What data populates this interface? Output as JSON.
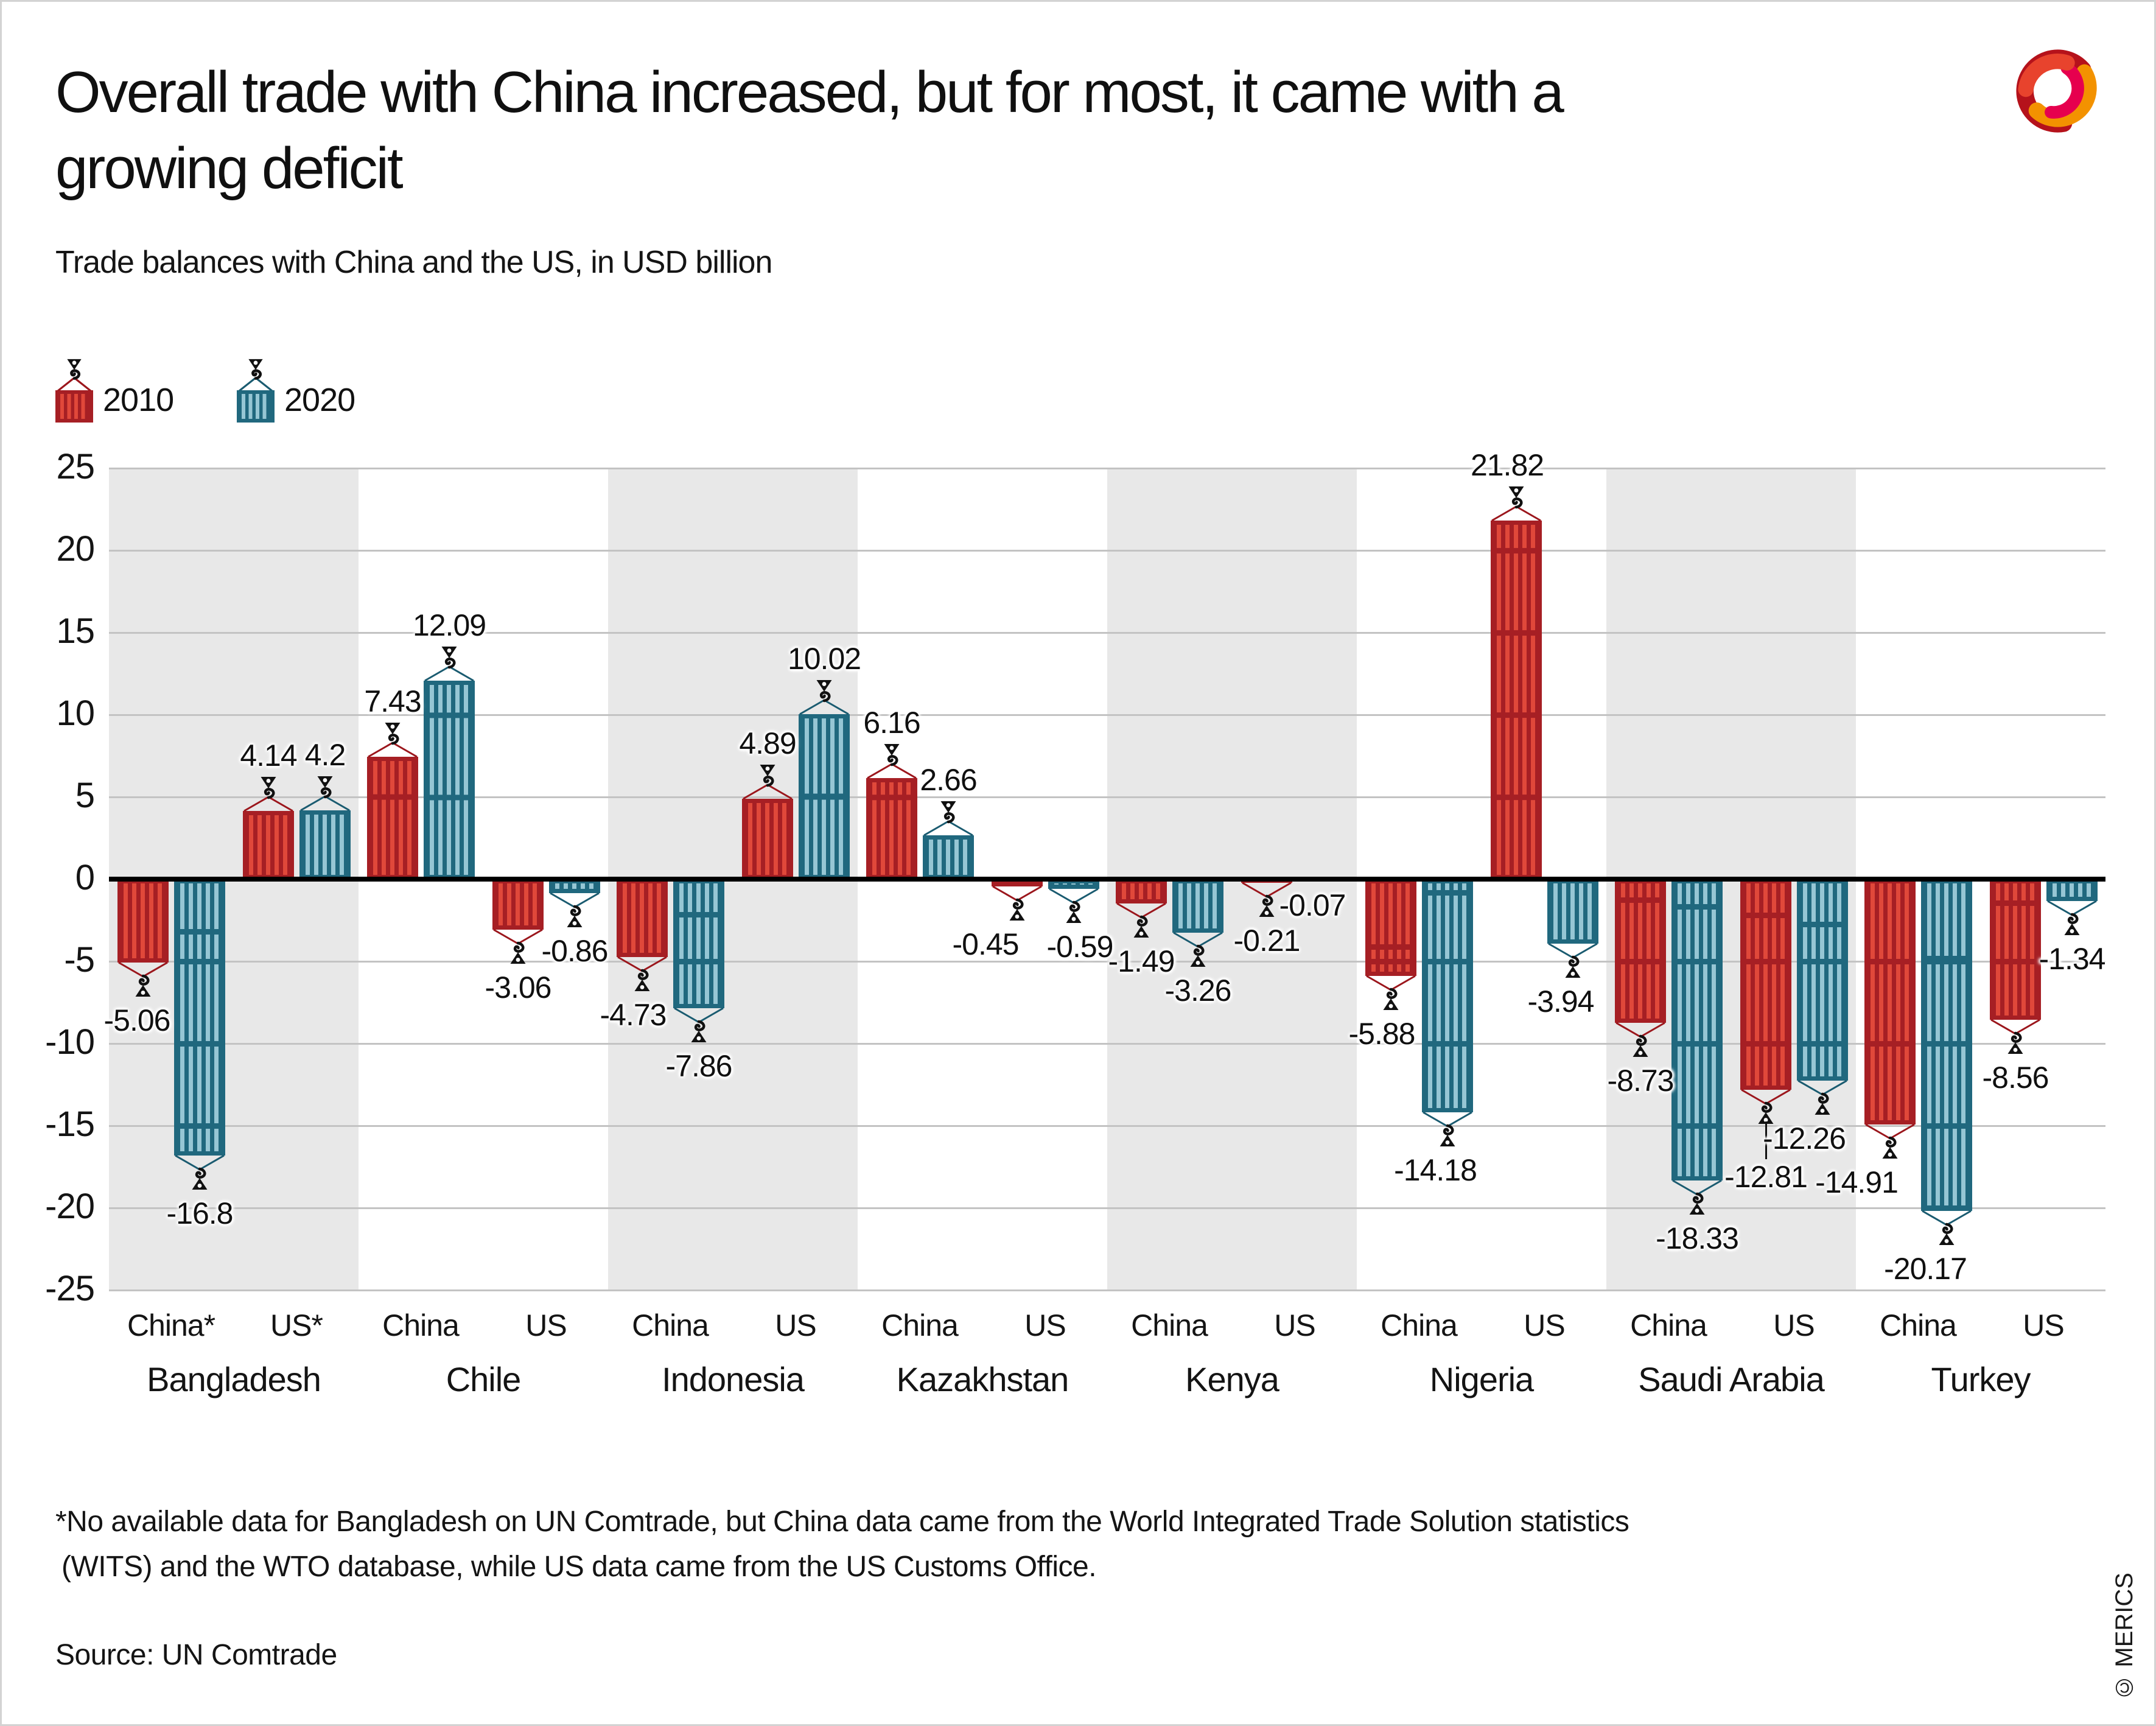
{
  "header": {
    "title_line1": "Overall trade with China increased, but for most, it came with a",
    "title_line2": "growing deficit",
    "subtitle": "Trade balances with China and the US, in USD billion"
  },
  "footnote": {
    "line1": "*No available data for Bangladesh on UN Comtrade, but China data came from the World Integrated Trade Solution statistics",
    "line2": "(WITS) and the WTO database, while US data came from the US Customs Office."
  },
  "source": "Source: UN Comtrade",
  "copyright": "© MERICS",
  "colors": {
    "red_base": "#A61F24",
    "red_stripe": "#E0483A",
    "red_cable": "#9B161C",
    "teal_base": "#20687E",
    "teal_stripe": "#96C6D4",
    "teal_cable": "#1A5B70",
    "band": "#E8E8E8",
    "gridline": "#C3C3C3",
    "zero_axis": "#000000",
    "logo_dark_red": "#B5121B",
    "logo_orange": "#F39200",
    "logo_pink": "#E6004E",
    "logo_red_orange": "#E8432D"
  },
  "chart_data": {
    "type": "bar",
    "title": "Overall trade with China increased, but for most, it came with a growing deficit",
    "subtitle": "Trade balances with China and the US, in USD billion",
    "ylabel": "USD billion",
    "ylim": [
      -25,
      25
    ],
    "ytick_step": 5,
    "grid": true,
    "legend_position": "top-left",
    "legend": [
      {
        "label": "2010",
        "color": "#A61F24"
      },
      {
        "label": "2020",
        "color": "#20687E"
      }
    ],
    "groups": [
      {
        "country": "Bangladesh",
        "shaded": true,
        "partners": [
          {
            "label": "China*",
            "values": [
              -5.06,
              -16.8
            ]
          },
          {
            "label": "US*",
            "values": [
              4.14,
              4.2
            ]
          }
        ]
      },
      {
        "country": "Chile",
        "shaded": false,
        "partners": [
          {
            "label": "China",
            "values": [
              7.43,
              12.09
            ]
          },
          {
            "label": "US",
            "values": [
              -3.06,
              -0.86
            ]
          }
        ]
      },
      {
        "country": "Indonesia",
        "shaded": true,
        "partners": [
          {
            "label": "China",
            "values": [
              -4.73,
              -7.86
            ]
          },
          {
            "label": "US",
            "values": [
              4.89,
              10.02
            ]
          }
        ]
      },
      {
        "country": "Kazakhstan",
        "shaded": false,
        "partners": [
          {
            "label": "China",
            "values": [
              6.16,
              2.66
            ]
          },
          {
            "label": "US",
            "values": [
              -0.45,
              -0.59
            ]
          }
        ]
      },
      {
        "country": "Kenya",
        "shaded": true,
        "partners": [
          {
            "label": "China",
            "values": [
              -1.49,
              -3.26
            ]
          },
          {
            "label": "US",
            "values": [
              -0.21,
              -0.07
            ]
          }
        ]
      },
      {
        "country": "Nigeria",
        "shaded": false,
        "partners": [
          {
            "label": "China",
            "values": [
              -5.88,
              -14.18
            ]
          },
          {
            "label": "US",
            "values": [
              21.82,
              -3.94
            ]
          }
        ]
      },
      {
        "country": "Saudi Arabia",
        "shaded": true,
        "partners": [
          {
            "label": "China",
            "values": [
              -8.73,
              -18.33
            ]
          },
          {
            "label": "US",
            "values": [
              -12.81,
              -12.26
            ]
          }
        ]
      },
      {
        "country": "Turkey",
        "shaded": false,
        "partners": [
          {
            "label": "China",
            "values": [
              -14.91,
              -20.17
            ]
          },
          {
            "label": "US",
            "values": [
              -8.56,
              -1.34
            ]
          }
        ]
      }
    ]
  }
}
